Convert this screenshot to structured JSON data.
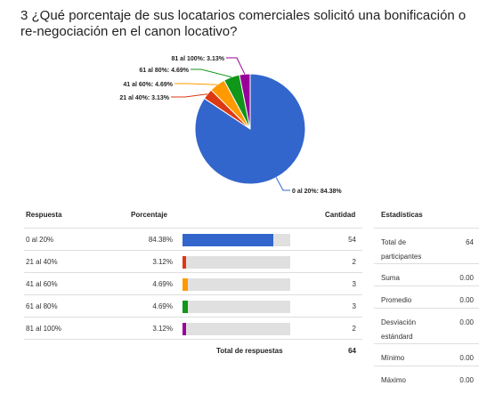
{
  "question": "3 ¿Qué porcentaje de sus locatarios comerciales solicitó una bonificación o re-negociación en el canon locativo?",
  "chart_data": {
    "type": "pie",
    "categories": [
      "0 al 20%",
      "21 al 40%",
      "41 al 60%",
      "61 al 80%",
      "81 al 100%"
    ],
    "values": [
      84.38,
      3.13,
      4.69,
      4.69,
      3.13
    ],
    "slice_labels": [
      "0 al 20%: 84.38%",
      "21 al 40%: 3.13%",
      "41 al 60%: 4.69%",
      "61 al 80%: 4.69%",
      "81 al 100%: 3.13%"
    ],
    "colors": [
      "#3366cc",
      "#dc3912",
      "#ff9900",
      "#109618",
      "#990099"
    ]
  },
  "table": {
    "headers": {
      "respuesta": "Respuesta",
      "porcentaje": "Porcentaje",
      "cantidad": "Cantidad"
    },
    "rows": [
      {
        "label": "0 al 20%",
        "pct": "84.38%",
        "value": 84.38,
        "count": "54",
        "color": "#3366cc"
      },
      {
        "label": "21 al 40%",
        "pct": "3.12%",
        "value": 3.12,
        "count": "2",
        "color": "#dc3912"
      },
      {
        "label": "41 al 60%",
        "pct": "4.69%",
        "value": 4.69,
        "count": "3",
        "color": "#ff9900"
      },
      {
        "label": "61 al 80%",
        "pct": "4.69%",
        "value": 4.69,
        "count": "3",
        "color": "#109618"
      },
      {
        "label": "81 al 100%",
        "pct": "3.12%",
        "value": 3.12,
        "count": "2",
        "color": "#990099"
      }
    ],
    "total_label": "Total de respuestas",
    "total_value": "64"
  },
  "stats": {
    "header": "Estadísticas",
    "rows": [
      {
        "label": "Total de participantes",
        "value": "64"
      },
      {
        "label": "Suma",
        "value": "0.00"
      },
      {
        "label": "Promedio",
        "value": "0.00"
      },
      {
        "label": "Desviación estándard",
        "value": "0.00"
      },
      {
        "label": "Mínimo",
        "value": "0.00"
      },
      {
        "label": "Máximo",
        "value": "0.00"
      }
    ]
  }
}
